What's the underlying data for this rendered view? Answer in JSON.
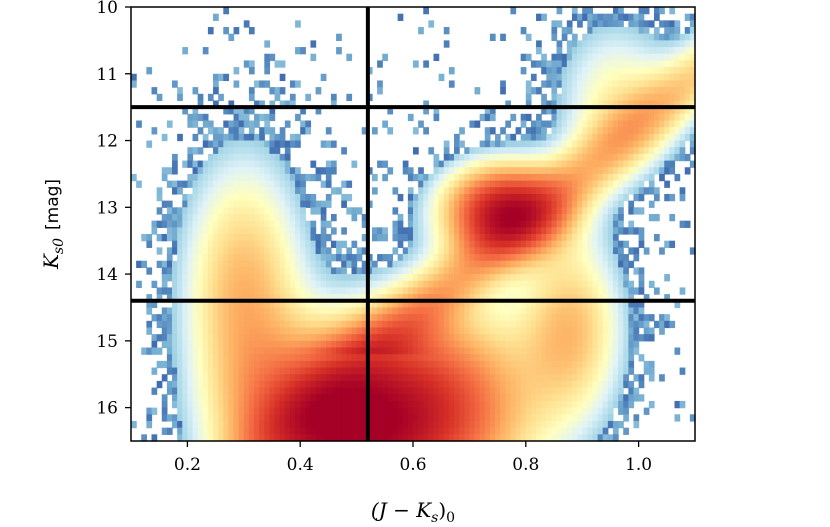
{
  "chart_data": {
    "type": "heatmap",
    "title": "",
    "x_label": {
      "math": "(J − K",
      "sub": "s",
      "close": ")",
      "sub0": "0"
    },
    "y_label": {
      "math": "K",
      "sub": "s0",
      "unit": "[mag]"
    },
    "xlim": [
      0.1,
      1.1
    ],
    "ylim": [
      16.5,
      10.0
    ],
    "y_inverted": true,
    "x_ticks": [
      0.2,
      0.4,
      0.6,
      0.8,
      1.0
    ],
    "x_tick_labels": [
      "0.2",
      "0.4",
      "0.6",
      "0.8",
      "1.0"
    ],
    "y_ticks": [
      10,
      11,
      12,
      13,
      14,
      15,
      16
    ],
    "y_tick_labels": [
      "10",
      "11",
      "12",
      "13",
      "14",
      "15",
      "16"
    ],
    "grid": false,
    "colormap": "RdYlBu_r",
    "bins": {
      "x": 110,
      "y": 65
    },
    "density_components": [
      {
        "kind": "red_clump",
        "x": 0.76,
        "y": 13.05,
        "sx": 0.07,
        "sy": 0.45,
        "weight": 1.0
      },
      {
        "kind": "turnoff_band",
        "x": 0.46,
        "y": 16.3,
        "sx": 0.11,
        "sy": 0.85,
        "weight": 1.05
      },
      {
        "kind": "turnoff_band_2",
        "x": 0.64,
        "y": 16.0,
        "sx": 0.12,
        "sy": 1.0,
        "weight": 0.75
      },
      {
        "kind": "blue_plume",
        "x": 0.3,
        "y": 14.3,
        "sx": 0.07,
        "sy": 1.3,
        "weight": 0.45
      },
      {
        "kind": "rgb_lower",
        "x": 0.88,
        "y": 14.8,
        "sx": 0.06,
        "sy": 0.9,
        "weight": 0.4
      },
      {
        "kind": "rgb_upper",
        "x": 0.96,
        "y": 11.4,
        "sx": 0.07,
        "sy": 0.8,
        "weight": 0.25
      }
    ],
    "cut_lines": {
      "horizontal": [
        11.5,
        14.4
      ],
      "vertical": [
        0.52
      ]
    },
    "colors": {
      "line": "#000000",
      "axis": "#000000",
      "low": "#313695",
      "high": "#a50026"
    }
  }
}
